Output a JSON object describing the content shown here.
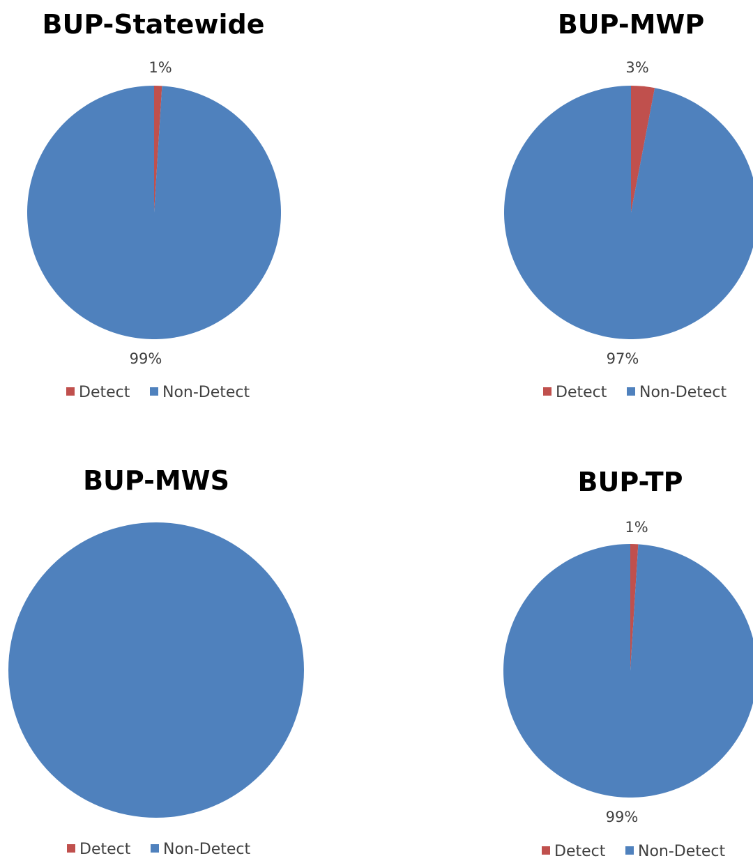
{
  "colors": {
    "detect": "#c0504d",
    "non_detect": "#4f81bd"
  },
  "chart_data": [
    {
      "type": "pie",
      "title": "BUP-Statewide",
      "categories": [
        "Detect",
        "Non-Detect"
      ],
      "values": [
        1,
        99
      ],
      "data_labels": [
        "1%",
        "99%"
      ],
      "legend": [
        "Detect",
        "Non-Detect"
      ],
      "legend_position": "bottom"
    },
    {
      "type": "pie",
      "title": "BUP-MWP",
      "categories": [
        "Detect",
        "Non-Detect"
      ],
      "values": [
        3,
        97
      ],
      "data_labels": [
        "3%",
        "97%"
      ],
      "legend": [
        "Detect",
        "Non-Detect"
      ],
      "legend_position": "bottom"
    },
    {
      "type": "pie",
      "title": "BUP-MWS",
      "categories": [
        "Detect",
        "Non-Detect"
      ],
      "values": [
        0,
        100
      ],
      "data_labels": [
        "",
        ""
      ],
      "legend": [
        "Detect",
        "Non-Detect"
      ],
      "legend_position": "bottom"
    },
    {
      "type": "pie",
      "title": "BUP-TP",
      "categories": [
        "Detect",
        "Non-Detect"
      ],
      "values": [
        1,
        99
      ],
      "data_labels": [
        "1%",
        "99%"
      ],
      "legend": [
        "Detect",
        "Non-Detect"
      ],
      "legend_position": "bottom"
    }
  ]
}
